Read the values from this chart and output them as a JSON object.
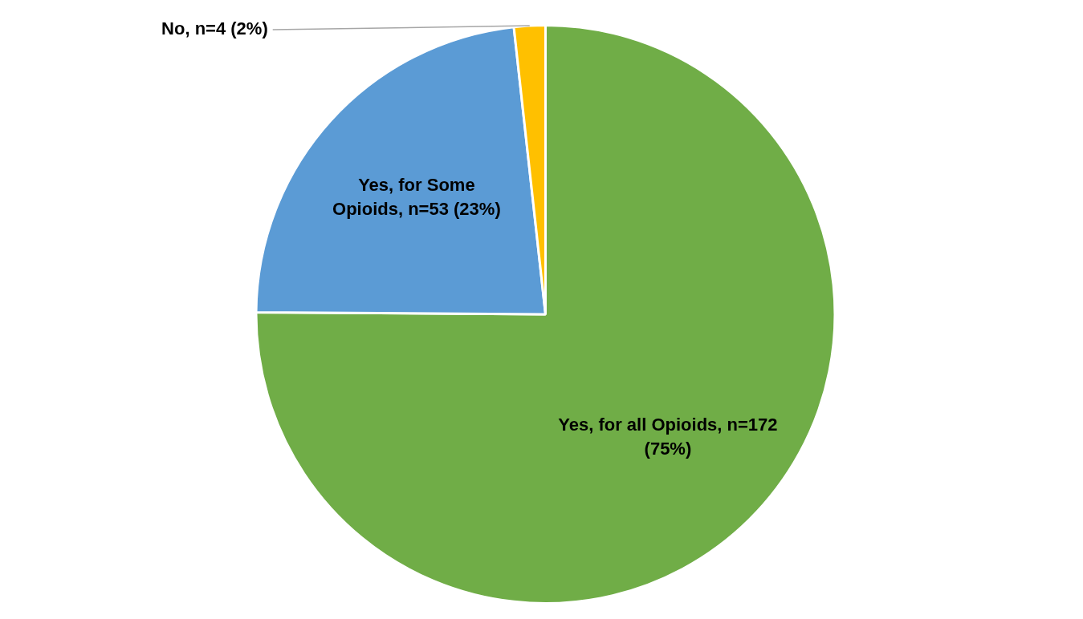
{
  "chart_data": {
    "type": "pie",
    "categories": [
      "Yes, for all Opioids",
      "Yes, for Some Opioids",
      "No"
    ],
    "values": [
      172,
      53,
      4
    ],
    "colors": [
      "#70ad47",
      "#5b9bd5",
      "#ffc000"
    ],
    "value_labels": [
      "n=172 (75%)",
      "n=53 (23%)",
      "n=4 (2%)"
    ],
    "legend": false
  }
}
